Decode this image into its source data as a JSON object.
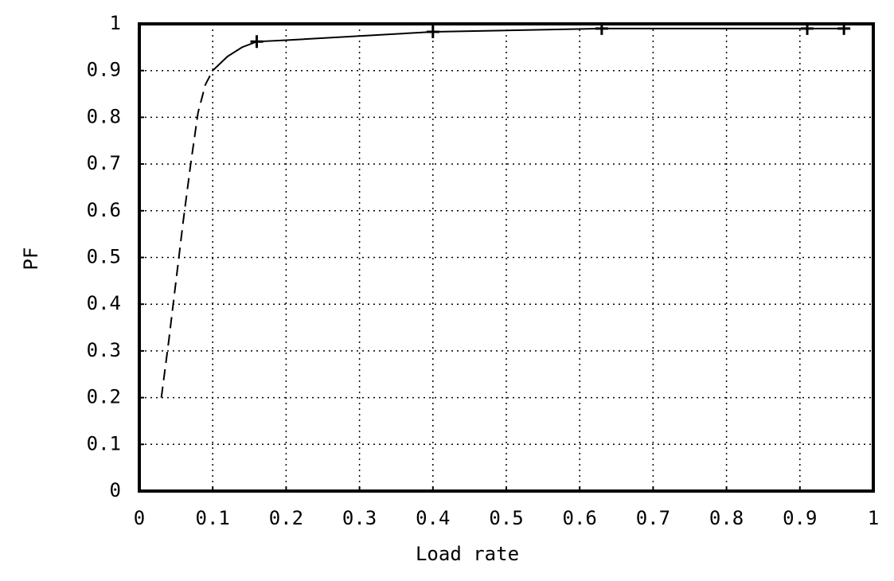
{
  "chart_data": {
    "type": "line",
    "x_label": "Load rate",
    "y_label": "PF",
    "xlim": [
      0,
      1
    ],
    "ylim": [
      0,
      1
    ],
    "xticks": [
      0,
      0.1,
      0.2,
      0.3,
      0.4,
      0.5,
      0.6,
      0.7,
      0.8,
      0.9,
      1
    ],
    "yticks": [
      0,
      0.1,
      0.2,
      0.3,
      0.4,
      0.5,
      0.6,
      0.7,
      0.8,
      0.9,
      1
    ],
    "grid": true,
    "series": [
      {
        "color": "#000000",
        "style": "dashed",
        "marker": "none",
        "x": [
          0.03,
          0.04,
          0.05,
          0.06,
          0.07,
          0.08,
          0.09,
          0.1
        ],
        "values": [
          0.2,
          0.32,
          0.45,
          0.58,
          0.7,
          0.81,
          0.87,
          0.9
        ]
      },
      {
        "color": "#000000",
        "style": "solid",
        "marker": "none",
        "x": [
          0.1,
          0.12,
          0.14,
          0.16,
          0.2,
          0.4,
          0.63,
          0.91,
          0.96
        ],
        "values": [
          0.9,
          0.93,
          0.95,
          0.962,
          0.965,
          0.983,
          0.99,
          0.99,
          0.99
        ]
      },
      {
        "color": "#000000",
        "style": "none",
        "marker": "+",
        "x": [
          0.16,
          0.4,
          0.63,
          0.91,
          0.96
        ],
        "values": [
          0.962,
          0.983,
          0.99,
          0.99,
          0.99
        ]
      }
    ]
  }
}
